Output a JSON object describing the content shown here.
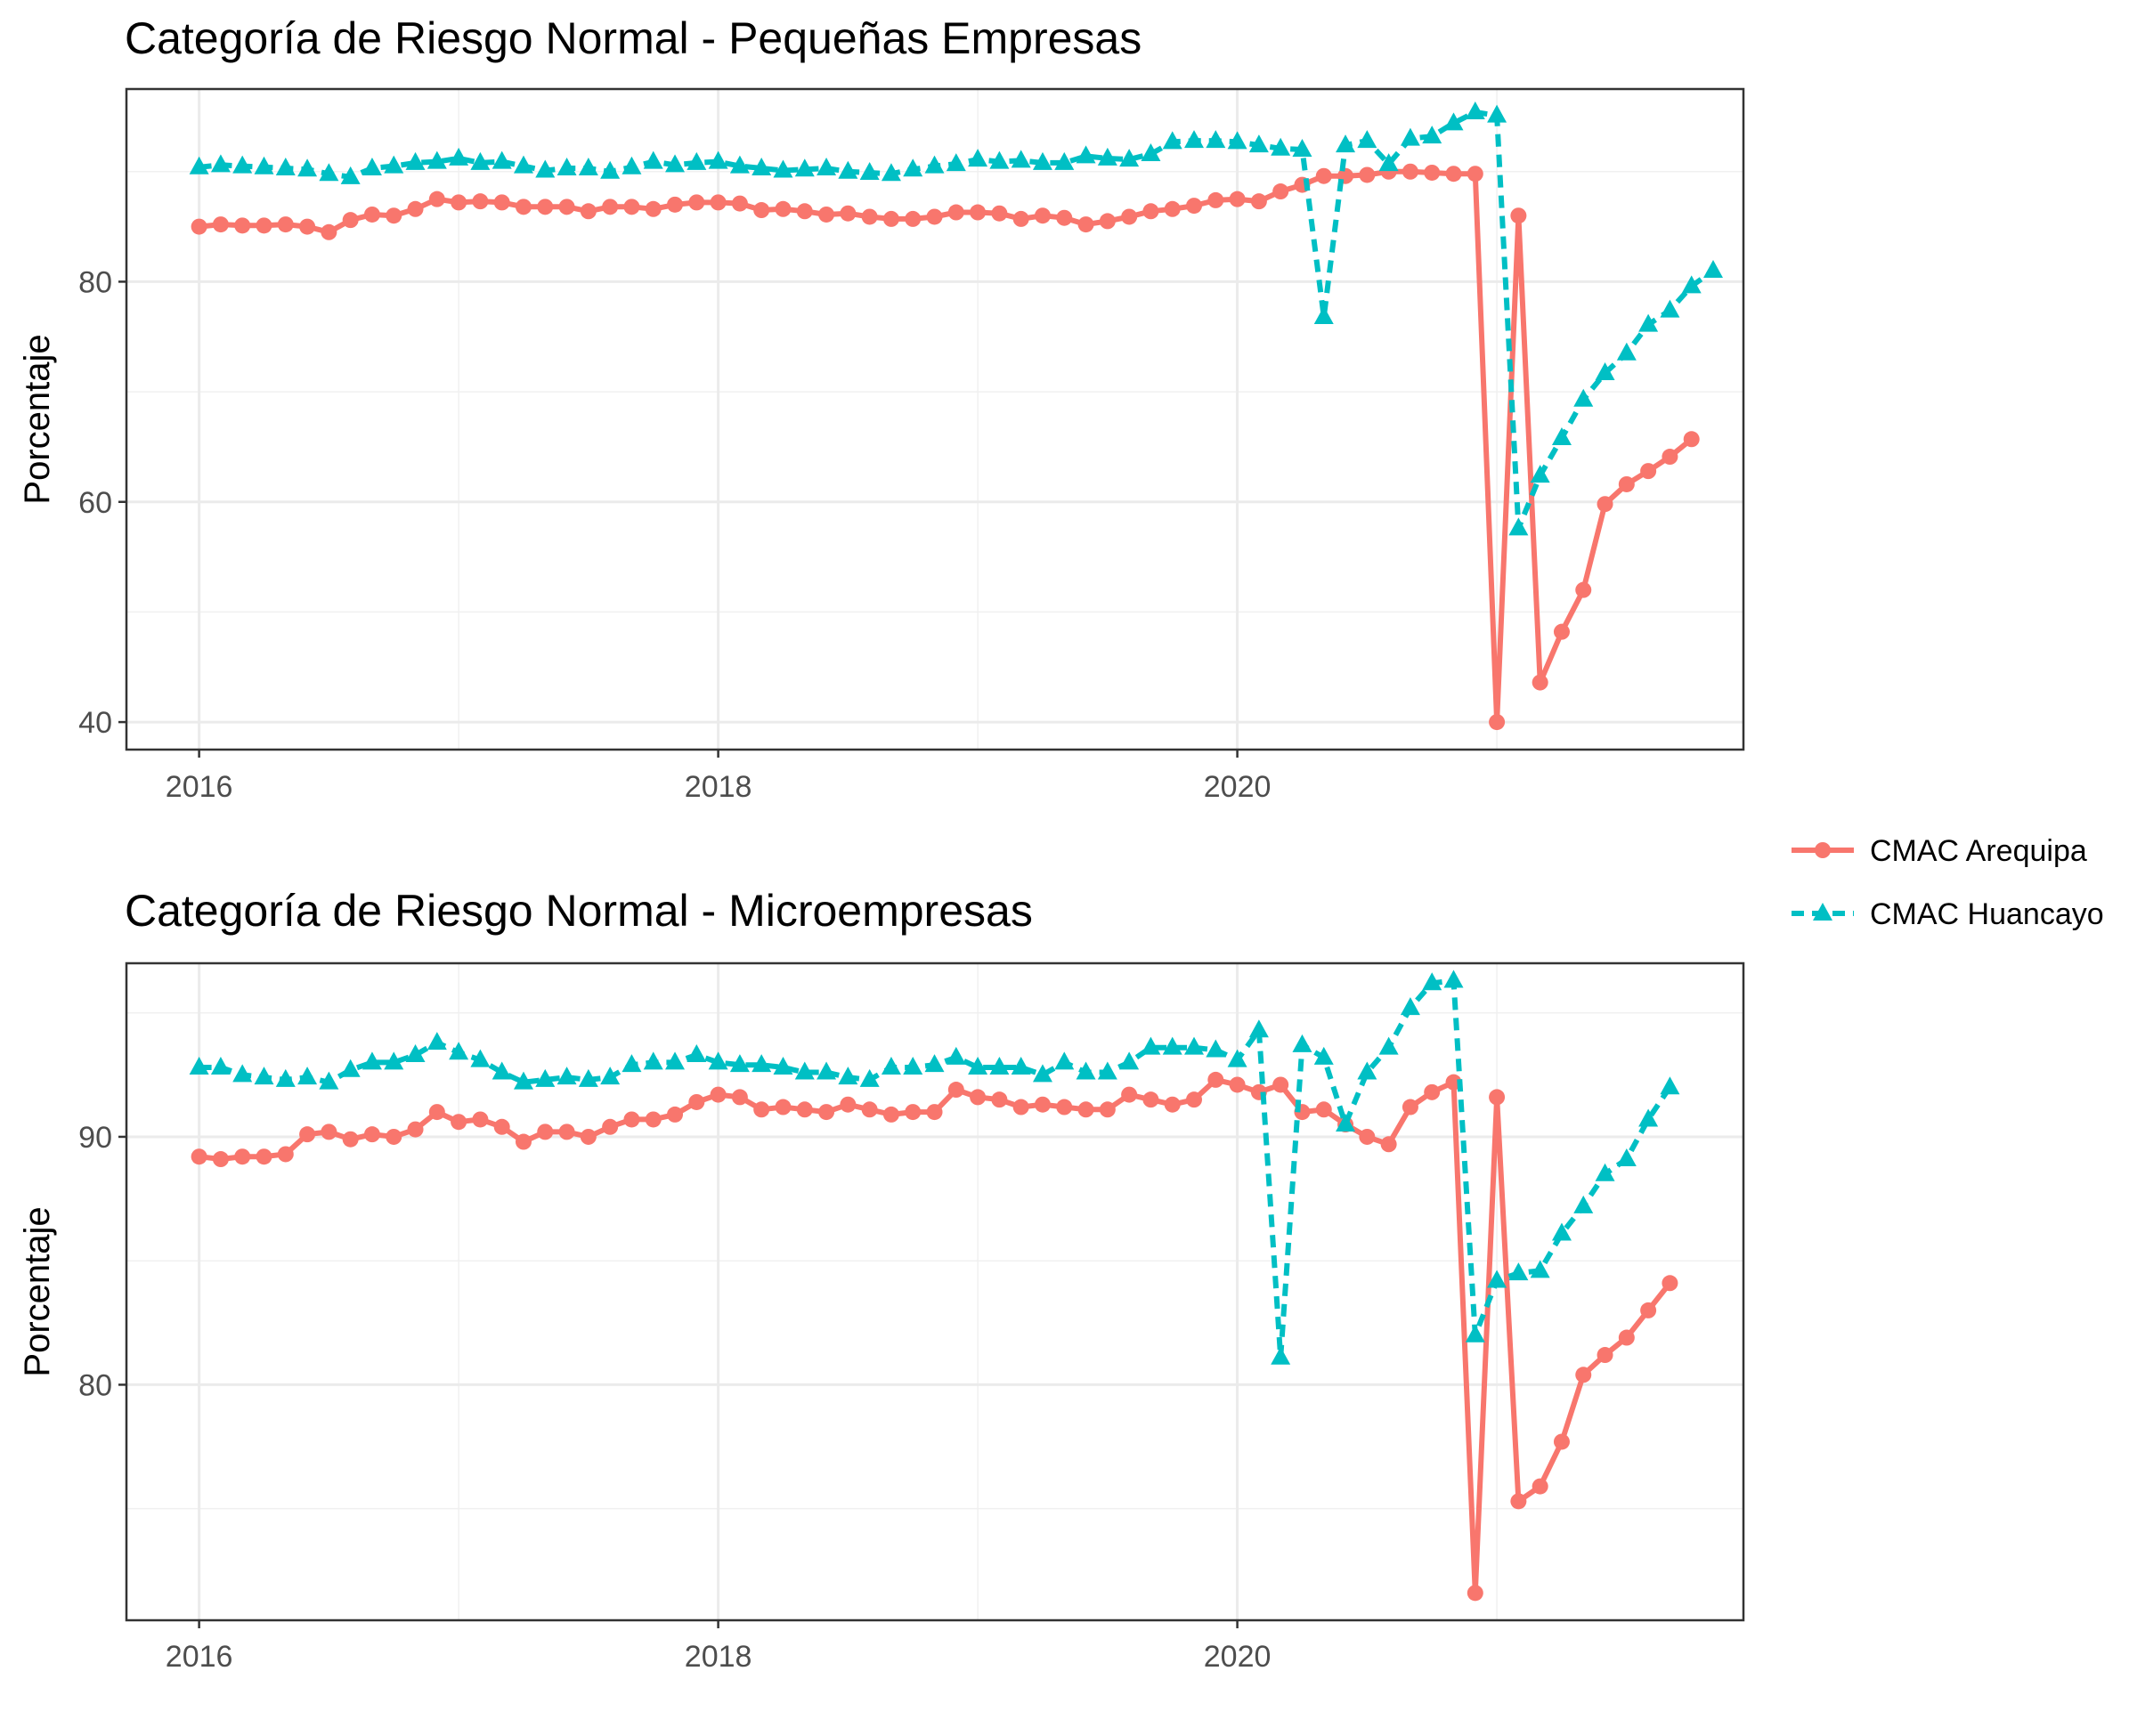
{
  "legend": {
    "entries": [
      {
        "label": "CMAC Arequipa",
        "color": "#F8766D",
        "shape": "circle",
        "line": "solid"
      },
      {
        "label": "CMAC Huancayo",
        "color": "#00BFC4",
        "shape": "triangle",
        "line": "dashed"
      }
    ]
  },
  "chart_data": [
    {
      "type": "line",
      "title": "Categoría de Riesgo Normal - Pequeñas Empresas",
      "xlabel": "",
      "ylabel": "Porcentaje",
      "x_ticks": [
        "2016",
        "2018",
        "2020"
      ],
      "y_ticks": [
        "40",
        "60",
        "80"
      ],
      "xlim": [
        2015.72,
        2021.95
      ],
      "ylim": [
        37.5,
        97.5
      ],
      "grid": true,
      "x_start": "2016-01",
      "series": [
        {
          "name": "CMAC Arequipa",
          "values": [
            85.0,
            85.2,
            85.1,
            85.1,
            85.2,
            85.0,
            84.5,
            85.6,
            86.1,
            86.0,
            86.6,
            87.5,
            87.2,
            87.3,
            87.2,
            86.8,
            86.8,
            86.8,
            86.4,
            86.8,
            86.8,
            86.6,
            87.0,
            87.2,
            87.2,
            87.1,
            86.5,
            86.6,
            86.4,
            86.1,
            86.2,
            85.9,
            85.7,
            85.7,
            85.9,
            86.3,
            86.3,
            86.2,
            85.7,
            86.0,
            85.8,
            85.2,
            85.5,
            85.9,
            86.4,
            86.6,
            86.9,
            87.4,
            87.5,
            87.3,
            88.2,
            88.8,
            89.6,
            89.6,
            89.7,
            90.0,
            90.0,
            89.9,
            89.8,
            89.8,
            40.0,
            86.0,
            43.6,
            48.2,
            52.0,
            59.8,
            61.6,
            62.8,
            64.1,
            65.7
          ]
        },
        {
          "name": "CMAC Huancayo",
          "values": [
            90.4,
            90.6,
            90.5,
            90.4,
            90.3,
            90.2,
            89.8,
            89.5,
            90.3,
            90.5,
            90.8,
            90.9,
            91.2,
            90.8,
            90.9,
            90.5,
            90.1,
            90.3,
            90.3,
            90.0,
            90.4,
            90.9,
            90.6,
            90.8,
            90.9,
            90.5,
            90.3,
            90.1,
            90.2,
            90.3,
            90.0,
            89.9,
            89.8,
            90.2,
            90.5,
            90.7,
            91.1,
            90.9,
            91.0,
            90.8,
            90.8,
            91.4,
            91.2,
            91.1,
            91.6,
            92.7,
            92.8,
            92.8,
            92.7,
            92.4,
            92.1,
            92.0,
            76.8,
            92.4,
            92.8,
            90.7,
            93.0,
            93.2,
            94.4,
            95.4,
            95.1,
            57.6,
            62.4,
            65.8,
            69.3,
            71.7,
            73.5,
            76.1,
            77.4,
            79.6,
            81.0
          ]
        }
      ]
    },
    {
      "type": "line",
      "title": "Categoría de Riesgo Normal - Microempresas",
      "xlabel": "",
      "ylabel": "Porcentaje",
      "x_ticks": [
        "2016",
        "2018",
        "2020"
      ],
      "y_ticks": [
        "80",
        "90"
      ],
      "xlim": [
        2015.72,
        2021.95
      ],
      "ylim": [
        70.5,
        97.0
      ],
      "grid": true,
      "x_start": "2016-01",
      "series": [
        {
          "name": "CMAC Arequipa",
          "values": [
            89.2,
            89.1,
            89.2,
            89.2,
            89.3,
            90.1,
            90.2,
            89.9,
            90.1,
            90.0,
            90.3,
            91.0,
            90.6,
            90.7,
            90.4,
            89.8,
            90.2,
            90.2,
            90.0,
            90.4,
            90.7,
            90.7,
            90.9,
            91.4,
            91.7,
            91.6,
            91.1,
            91.2,
            91.1,
            91.0,
            91.3,
            91.1,
            90.9,
            91.0,
            91.0,
            91.9,
            91.6,
            91.5,
            91.2,
            91.3,
            91.2,
            91.1,
            91.1,
            91.7,
            91.5,
            91.3,
            91.5,
            92.3,
            92.1,
            91.8,
            92.1,
            91.0,
            91.1,
            90.5,
            90.0,
            89.7,
            91.2,
            91.8,
            92.2,
            71.6,
            91.6,
            75.3,
            75.9,
            77.7,
            80.4,
            81.2,
            81.9,
            83.0,
            84.1
          ]
        },
        {
          "name": "CMAC Huancayo",
          "values": [
            92.8,
            92.8,
            92.5,
            92.4,
            92.3,
            92.4,
            92.2,
            92.7,
            93.0,
            93.0,
            93.3,
            93.8,
            93.4,
            93.1,
            92.6,
            92.2,
            92.3,
            92.4,
            92.3,
            92.4,
            92.9,
            93.0,
            93.0,
            93.3,
            93.0,
            92.9,
            92.9,
            92.8,
            92.6,
            92.6,
            92.4,
            92.3,
            92.8,
            92.8,
            92.9,
            93.2,
            92.8,
            92.8,
            92.8,
            92.5,
            93.0,
            92.6,
            92.6,
            93.0,
            93.6,
            93.6,
            93.6,
            93.5,
            93.1,
            94.3,
            81.1,
            93.7,
            93.2,
            90.5,
            92.6,
            93.6,
            95.2,
            96.2,
            96.3,
            82.0,
            84.2,
            84.5,
            84.6,
            86.1,
            87.2,
            88.5,
            89.1,
            90.7,
            92.0
          ]
        }
      ]
    }
  ]
}
